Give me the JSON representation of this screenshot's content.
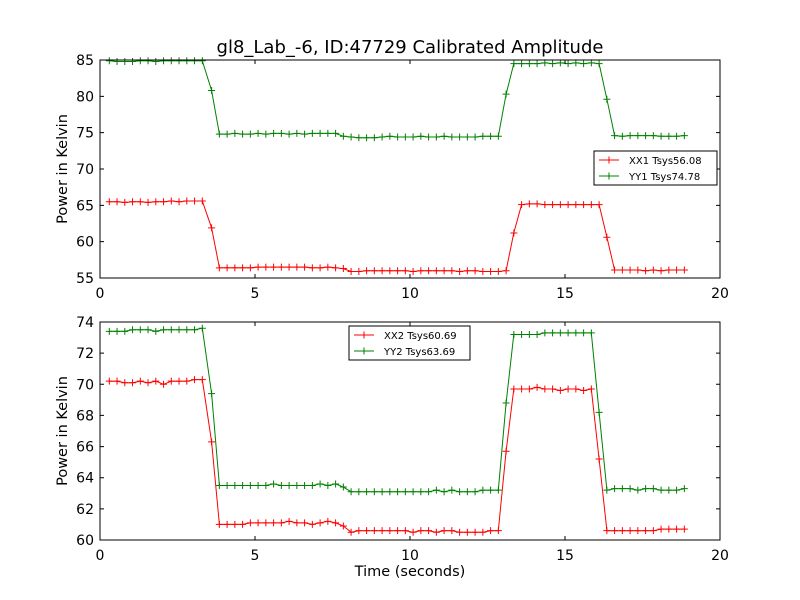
{
  "figure": {
    "title": "gl8_Lab_-6, ID:47729 Calibrated Amplitude",
    "xlabel": "Time (seconds)"
  },
  "chart_data": [
    {
      "type": "line",
      "title": "gl8_Lab_-6, ID:47729 Calibrated Amplitude",
      "xlabel": "",
      "ylabel": "Power in Kelvin",
      "xlim": [
        0,
        20
      ],
      "ylim": [
        55,
        85
      ],
      "xticks": [
        0,
        5,
        10,
        15,
        20
      ],
      "yticks": [
        55,
        60,
        65,
        70,
        75,
        80,
        85
      ],
      "legend_position": "center-right",
      "grid": false,
      "x": [
        0.3,
        0.55,
        0.8,
        1.05,
        1.3,
        1.55,
        1.8,
        2.05,
        2.3,
        2.55,
        2.8,
        3.05,
        3.3,
        3.6,
        3.85,
        4.1,
        4.35,
        4.6,
        4.85,
        5.1,
        5.35,
        5.6,
        5.85,
        6.1,
        6.35,
        6.6,
        6.85,
        7.1,
        7.35,
        7.6,
        7.85,
        8.1,
        8.35,
        8.6,
        8.85,
        9.1,
        9.35,
        9.6,
        9.85,
        10.1,
        10.35,
        10.6,
        10.85,
        11.1,
        11.35,
        11.6,
        11.85,
        12.1,
        12.35,
        12.6,
        12.85,
        13.1,
        13.35,
        13.6,
        13.85,
        14.1,
        14.35,
        14.6,
        14.85,
        15.1,
        15.35,
        15.6,
        15.85,
        16.1,
        16.35,
        16.6,
        16.85,
        17.1,
        17.35,
        17.6,
        17.85,
        18.1,
        18.35,
        18.6,
        18.85
      ],
      "series": [
        {
          "name": "XX1 Tsys56.08",
          "color": "#ff0000",
          "values": [
            65.5,
            65.5,
            65.4,
            65.5,
            65.5,
            65.4,
            65.5,
            65.5,
            65.6,
            65.5,
            65.6,
            65.6,
            65.6,
            61.9,
            56.4,
            56.4,
            56.4,
            56.4,
            56.4,
            56.5,
            56.5,
            56.5,
            56.5,
            56.5,
            56.5,
            56.5,
            56.4,
            56.4,
            56.5,
            56.4,
            56.3,
            55.9,
            55.9,
            56.0,
            56.0,
            56.0,
            56.0,
            56.0,
            56.0,
            55.9,
            56.0,
            56.0,
            56.0,
            56.0,
            56.0,
            55.9,
            56.0,
            56.0,
            55.9,
            55.9,
            55.9,
            56.0,
            61.2,
            65.1,
            65.2,
            65.2,
            65.1,
            65.1,
            65.1,
            65.1,
            65.1,
            65.1,
            65.1,
            65.1,
            60.6,
            56.1,
            56.1,
            56.1,
            56.1,
            56.0,
            56.1,
            56.0,
            56.1,
            56.1,
            56.1
          ]
        },
        {
          "name": "YY1 Tsys74.78",
          "color": "#008000",
          "values": [
            84.9,
            84.8,
            84.8,
            84.8,
            84.9,
            84.9,
            84.8,
            84.9,
            84.9,
            84.9,
            84.9,
            84.9,
            84.9,
            80.8,
            74.8,
            74.8,
            74.9,
            74.8,
            74.8,
            74.9,
            74.8,
            74.9,
            74.9,
            74.8,
            74.9,
            74.8,
            74.9,
            74.9,
            74.9,
            74.9,
            74.5,
            74.4,
            74.3,
            74.3,
            74.3,
            74.4,
            74.5,
            74.4,
            74.4,
            74.4,
            74.5,
            74.4,
            74.4,
            74.5,
            74.4,
            74.4,
            74.4,
            74.4,
            74.5,
            74.5,
            74.5,
            80.3,
            84.5,
            84.5,
            84.5,
            84.5,
            84.6,
            84.5,
            84.6,
            84.5,
            84.6,
            84.5,
            84.6,
            84.5,
            79.6,
            74.6,
            74.5,
            74.6,
            74.6,
            74.6,
            74.6,
            74.5,
            74.5,
            74.5,
            74.6
          ]
        }
      ]
    },
    {
      "type": "line",
      "xlabel": "Time (seconds)",
      "ylabel": "Power in Kelvin",
      "xlim": [
        0,
        20
      ],
      "ylim": [
        60,
        74
      ],
      "xticks": [
        0,
        5,
        10,
        15,
        20
      ],
      "yticks": [
        60,
        62,
        64,
        66,
        68,
        70,
        72,
        74
      ],
      "legend_position": "top-center",
      "grid": false,
      "x": [
        0.3,
        0.55,
        0.8,
        1.05,
        1.3,
        1.55,
        1.8,
        2.05,
        2.3,
        2.55,
        2.8,
        3.05,
        3.3,
        3.6,
        3.85,
        4.1,
        4.35,
        4.6,
        4.85,
        5.1,
        5.35,
        5.6,
        5.85,
        6.1,
        6.35,
        6.6,
        6.85,
        7.1,
        7.35,
        7.6,
        7.85,
        8.1,
        8.35,
        8.6,
        8.85,
        9.1,
        9.35,
        9.6,
        9.85,
        10.1,
        10.35,
        10.6,
        10.85,
        11.1,
        11.35,
        11.6,
        11.85,
        12.1,
        12.35,
        12.6,
        12.85,
        13.1,
        13.35,
        13.6,
        13.85,
        14.1,
        14.35,
        14.6,
        14.85,
        15.1,
        15.35,
        15.6,
        15.85,
        16.1,
        16.35,
        16.6,
        16.85,
        17.1,
        17.35,
        17.6,
        17.85,
        18.1,
        18.35,
        18.6,
        18.85
      ],
      "series": [
        {
          "name": "XX2 Tsys60.69",
          "color": "#ff0000",
          "values": [
            70.2,
            70.2,
            70.1,
            70.1,
            70.2,
            70.1,
            70.2,
            70.0,
            70.2,
            70.2,
            70.2,
            70.3,
            70.3,
            66.3,
            61.0,
            61.0,
            61.0,
            61.0,
            61.1,
            61.1,
            61.1,
            61.1,
            61.1,
            61.2,
            61.1,
            61.1,
            61.0,
            61.1,
            61.2,
            61.1,
            60.9,
            60.5,
            60.6,
            60.6,
            60.6,
            60.6,
            60.6,
            60.6,
            60.6,
            60.5,
            60.6,
            60.6,
            60.5,
            60.6,
            60.6,
            60.5,
            60.5,
            60.5,
            60.5,
            60.6,
            60.6,
            65.7,
            69.7,
            69.7,
            69.7,
            69.8,
            69.7,
            69.7,
            69.6,
            69.7,
            69.7,
            69.6,
            69.7,
            65.2,
            60.6,
            60.6,
            60.6,
            60.6,
            60.6,
            60.6,
            60.6,
            60.7,
            60.7,
            60.7,
            60.7
          ]
        },
        {
          "name": "YY2 Tsys63.69",
          "color": "#008000",
          "values": [
            73.4,
            73.4,
            73.4,
            73.5,
            73.5,
            73.5,
            73.4,
            73.5,
            73.5,
            73.5,
            73.5,
            73.5,
            73.6,
            69.4,
            63.5,
            63.5,
            63.5,
            63.5,
            63.5,
            63.5,
            63.5,
            63.6,
            63.5,
            63.5,
            63.5,
            63.5,
            63.5,
            63.6,
            63.5,
            63.6,
            63.4,
            63.1,
            63.1,
            63.1,
            63.1,
            63.1,
            63.1,
            63.1,
            63.1,
            63.1,
            63.1,
            63.1,
            63.2,
            63.1,
            63.2,
            63.1,
            63.1,
            63.1,
            63.2,
            63.2,
            63.2,
            68.8,
            73.2,
            73.2,
            73.2,
            73.2,
            73.3,
            73.3,
            73.3,
            73.3,
            73.3,
            73.3,
            73.3,
            68.2,
            63.2,
            63.3,
            63.3,
            63.3,
            63.2,
            63.3,
            63.3,
            63.2,
            63.2,
            63.2,
            63.3
          ]
        }
      ]
    }
  ]
}
